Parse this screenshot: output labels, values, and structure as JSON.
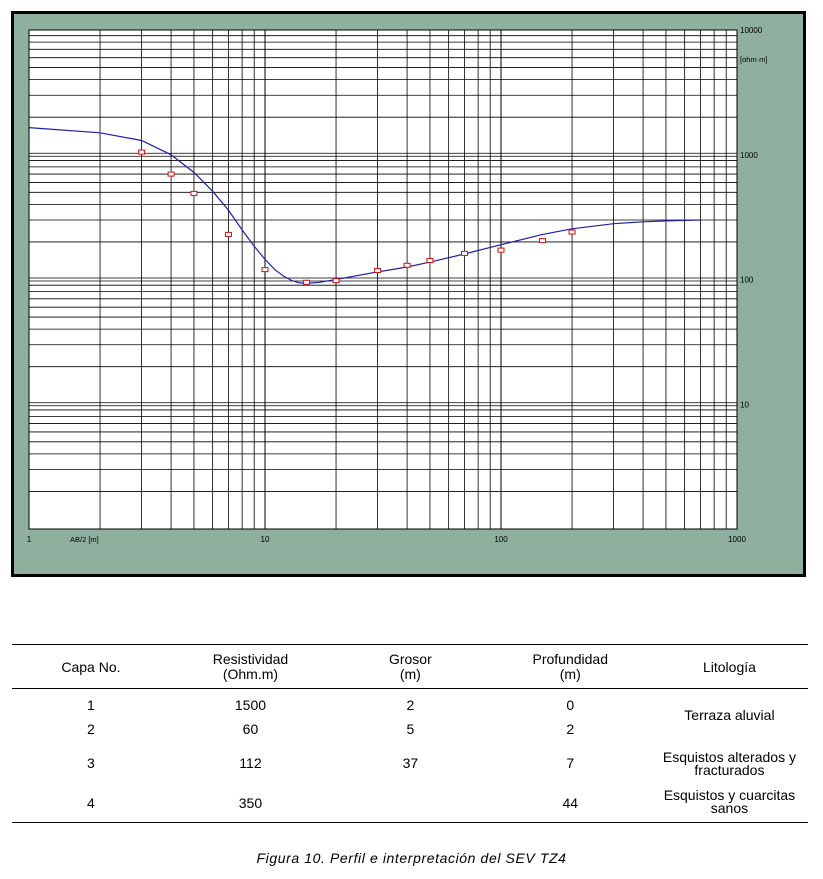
{
  "chart_data": {
    "type": "line",
    "title": "",
    "xlabel": "AB/2 [m]",
    "ylabel": "[ohm·m]",
    "x_scale": "log",
    "y_scale": "log",
    "xlim": [
      1,
      1000
    ],
    "ylim": [
      1,
      10000
    ],
    "grid": true,
    "x_tick_labels": [
      "1",
      "10",
      "100",
      "1000"
    ],
    "y_tick_labels": [
      "10000",
      "1000",
      "100",
      "10"
    ],
    "series": [
      {
        "role": "model-curve",
        "color": "#1f1fa8",
        "x": [
          1,
          2,
          3,
          4,
          5,
          6,
          7,
          8,
          9,
          10,
          11,
          12,
          13,
          14,
          15,
          17,
          20,
          25,
          30,
          40,
          50,
          70,
          100,
          150,
          200,
          300,
          400,
          500,
          700
        ],
        "y": [
          1650,
          1500,
          1300,
          1000,
          720,
          510,
          360,
          250,
          185,
          145,
          120,
          106,
          98,
          94,
          93,
          95,
          100,
          108,
          115,
          126,
          138,
          160,
          190,
          230,
          255,
          280,
          290,
          295,
          300
        ]
      },
      {
        "role": "measured-points",
        "color": "#cc1111",
        "marker": "square",
        "x": [
          3,
          4,
          5,
          7,
          10,
          15,
          20,
          30,
          40,
          50,
          70,
          100,
          150,
          200
        ],
        "y": [
          1050,
          700,
          490,
          230,
          120,
          95,
          98,
          118,
          130,
          142,
          162,
          172,
          205,
          240
        ]
      }
    ]
  },
  "table": {
    "headers": [
      [
        "Capa No."
      ],
      [
        "Resistividad",
        "(Ohm.m)"
      ],
      [
        "Grosor",
        "(m)"
      ],
      [
        "Profundidad",
        "(m)"
      ],
      [
        "Litología"
      ]
    ],
    "rows": [
      {
        "capa": "1",
        "resistividad": "1500",
        "grosor": "2",
        "profundidad": "0"
      },
      {
        "capa": "2",
        "resistividad": "60",
        "grosor": "5",
        "profundidad": "2"
      },
      {
        "capa": "3",
        "resistividad": "112",
        "grosor": "37",
        "profundidad": "7"
      },
      {
        "capa": "4",
        "resistividad": "350",
        "grosor": "",
        "profundidad": "44"
      }
    ],
    "litologia": [
      [
        "Terraza aluvial"
      ],
      [
        "Esquistos alterados y",
        "fracturados"
      ],
      [
        "Esquistos y cuarcitas",
        "sanos"
      ]
    ]
  },
  "caption": "Figura 10. Perfil e interpretación del SEV TZ4",
  "colors": {
    "chart_background": "#8fb09e",
    "plot_background": "#ffffff",
    "grid": "#000000",
    "curve": "#1f1fa8",
    "points": "#cc1111"
  }
}
